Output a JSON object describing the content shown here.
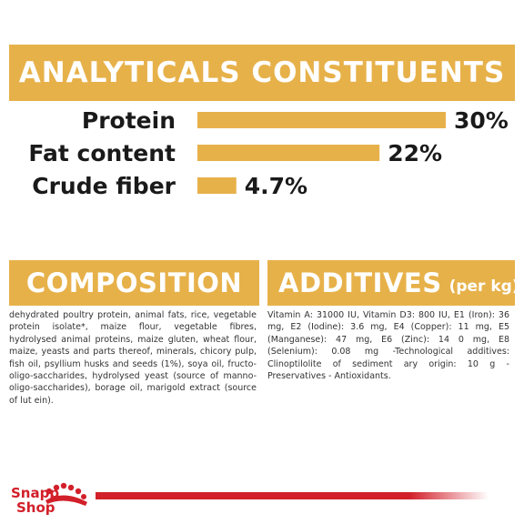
{
  "analytics": {
    "title": "ANALYTICALS CONSTITUENTS"
  },
  "chart_data": {
    "type": "bar",
    "orientation": "horizontal",
    "categories": [
      "Protein",
      "Fat content",
      "Crude fiber"
    ],
    "values": [
      30,
      22,
      4.7
    ],
    "value_labels": [
      "30%",
      "22%",
      "4.7%"
    ],
    "title": "ANALYTICALS CONSTITUENTS",
    "xlabel": "",
    "ylabel": "",
    "xlim": [
      0,
      30
    ],
    "grid": false,
    "legend": "none",
    "bar_color": "#e7b14a"
  },
  "composition": {
    "title": "COMPOSITION",
    "text": "dehydrated poultry protein, animal fats, rice, vegetable protein isolate*, maize flour, vegetable fibres, hydrolysed animal proteins, maize gluten, wheat flour, maize, yeasts and parts thereof, minerals, chicory pulp, fish oil, psyllium husks and seeds (1%), soya oil, fructo-oligo-saccharides, hydrolysed yeast (source of manno-oligo-saccharides), borage oil, marigold extract (source of lut ein)."
  },
  "additives": {
    "title": "ADDITIVES",
    "unit": "(per kg)",
    "text": "Vitamin A: 31000 IU, Vitamin D3: 800 IU, E1 (Iron): 36 mg, E2 (Iodine): 3.6 mg, E4 (Copper): 11 mg, E5 (Manganese): 47 mg, E6 (Zinc): 14 0 mg, E8 (Selenium): 0.08 mg -Technological additives: Clinoptilolite of sediment ary origin: 10 g - Preservatives - Antioxidants."
  },
  "logo": {
    "line1": "Snapp",
    "line2": "Shop"
  },
  "colors": {
    "accent": "#e7b14a",
    "brand_red": "#d2202a"
  }
}
